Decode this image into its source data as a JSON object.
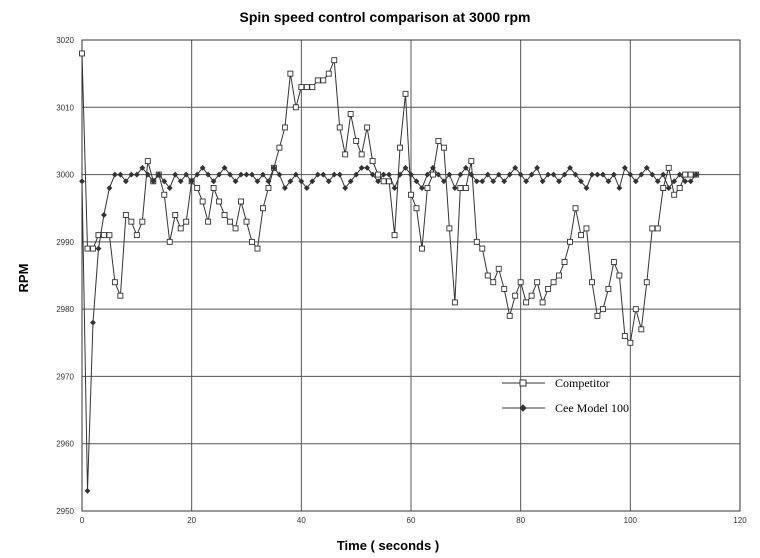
{
  "chart_data": {
    "type": "line",
    "title": "Spin speed control comparison at 3000 rpm",
    "xlabel": "Time ( seconds )",
    "ylabel": "RPM",
    "xlim": [
      0,
      120
    ],
    "ylim": [
      2950,
      3020
    ],
    "xticks": [
      "0",
      "20",
      "40",
      "60",
      "80",
      "100",
      "120"
    ],
    "yticks": [
      "2950",
      "2960",
      "2970",
      "2980",
      "2990",
      "3000",
      "3010",
      "3020"
    ],
    "grid": true,
    "legend_position": "lower-right",
    "series": [
      {
        "name": "Competitor",
        "marker": "square",
        "color": "#333333",
        "x": [
          0,
          1,
          2,
          3,
          4,
          5,
          6,
          7,
          8,
          9,
          10,
          11,
          12,
          13,
          14,
          15,
          16,
          17,
          18,
          19,
          20,
          21,
          22,
          23,
          24,
          25,
          26,
          27,
          28,
          29,
          30,
          31,
          32,
          33,
          34,
          35,
          36,
          37,
          38,
          39,
          40,
          41,
          42,
          43,
          44,
          45,
          46,
          47,
          48,
          49,
          50,
          51,
          52,
          53,
          54,
          55,
          56,
          57,
          58,
          59,
          60,
          61,
          62,
          63,
          64,
          65,
          66,
          67,
          68,
          69,
          70,
          71,
          72,
          73,
          74,
          75,
          76,
          77,
          78,
          79,
          80,
          81,
          82,
          83,
          84,
          85,
          86,
          87,
          88,
          89,
          90,
          91,
          92,
          93,
          94,
          95,
          96,
          97,
          98,
          99,
          100,
          101,
          102,
          103,
          104,
          105,
          106,
          107,
          108,
          109,
          110,
          111,
          112
        ],
        "values": [
          3018,
          2989,
          2989,
          2991,
          2991,
          2991,
          2984,
          2982,
          2994,
          2993,
          2991,
          2993,
          3002,
          2999,
          3000,
          2997,
          2990,
          2994,
          2992,
          2993,
          2999,
          2998,
          2996,
          2993,
          2998,
          2996,
          2994,
          2993,
          2992,
          2996,
          2993,
          2990,
          2989,
          2995,
          2998,
          3001,
          3004,
          3007,
          3015,
          3010,
          3013,
          3013,
          3013,
          3014,
          3014,
          3015,
          3017,
          3007,
          3003,
          3009,
          3005,
          3003,
          3007,
          3002,
          3000,
          2999,
          2999,
          2991,
          3004,
          3012,
          2997,
          2995,
          2989,
          2998,
          3000,
          3005,
          3004,
          2992,
          2981,
          2998,
          2998,
          3002,
          2990,
          2989,
          2985,
          2984,
          2986,
          2983,
          2979,
          2982,
          2984,
          2981,
          2982,
          2984,
          2981,
          2983,
          2984,
          2985,
          2987,
          2990,
          2995,
          2991,
          2992,
          2984,
          2979,
          2980,
          2983,
          2987,
          2985,
          2976,
          2975,
          2980,
          2977,
          2984,
          2992,
          2992,
          2998,
          3001,
          2997,
          2998,
          3000,
          3000,
          3000
        ],
        "marker_every": 1
      },
      {
        "name": "Cee Model 100",
        "marker": "diamond",
        "color": "#333333",
        "x": [
          0,
          1,
          2,
          3,
          4,
          5,
          6,
          7,
          8,
          9,
          10,
          11,
          12,
          13,
          14,
          15,
          16,
          17,
          18,
          19,
          20,
          21,
          22,
          23,
          24,
          25,
          26,
          27,
          28,
          29,
          30,
          31,
          32,
          33,
          34,
          35,
          36,
          37,
          38,
          39,
          40,
          41,
          42,
          43,
          44,
          45,
          46,
          47,
          48,
          49,
          50,
          51,
          52,
          53,
          54,
          55,
          56,
          57,
          58,
          59,
          60,
          61,
          62,
          63,
          64,
          65,
          66,
          67,
          68,
          69,
          70,
          71,
          72,
          73,
          74,
          75,
          76,
          77,
          78,
          79,
          80,
          81,
          82,
          83,
          84,
          85,
          86,
          87,
          88,
          89,
          90,
          91,
          92,
          93,
          94,
          95,
          96,
          97,
          98,
          99,
          100,
          101,
          102,
          103,
          104,
          105,
          106,
          107,
          108,
          109,
          110,
          111,
          112
        ],
        "values": [
          2999,
          2953,
          2978,
          2989,
          2994,
          2998,
          3000,
          3000,
          2999,
          3000,
          3000,
          3001,
          3000,
          2999,
          3000,
          2999,
          2998,
          3000,
          2999,
          3000,
          2999,
          3000,
          3001,
          3000,
          2999,
          3000,
          3001,
          3000,
          2999,
          3000,
          3000,
          3000,
          2999,
          3000,
          2999,
          3001,
          3000,
          2998,
          2999,
          3000,
          2999,
          2998,
          2999,
          3000,
          3000,
          2999,
          3000,
          3000,
          2998,
          2999,
          3000,
          3001,
          3001,
          3000,
          2999,
          3000,
          3000,
          2998,
          3000,
          3001,
          3000,
          2999,
          2998,
          3000,
          3001,
          3000,
          2999,
          3000,
          2998,
          3000,
          3001,
          3000,
          2999,
          2999,
          3000,
          2999,
          3000,
          2999,
          3000,
          3001,
          3000,
          2999,
          3000,
          3001,
          2999,
          3000,
          3000,
          2999,
          3000,
          3001,
          3000,
          2999,
          2998,
          3000,
          3000,
          3000,
          2999,
          3000,
          2998,
          3001,
          3000,
          2999,
          3000,
          3001,
          3000,
          2999,
          3000,
          2998,
          2999,
          3000,
          2999,
          2999,
          3000
        ],
        "marker_every": 1
      }
    ],
    "legend": [
      "Competitor",
      "Cee Model 100"
    ]
  }
}
